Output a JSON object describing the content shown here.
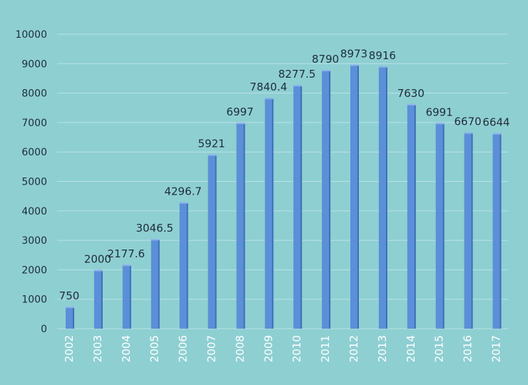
{
  "colors": {
    "background": "#8ecfd2",
    "bar_face": "#5b8fd8",
    "bar_side": "#3f6fb6",
    "bar_top": "#8fb5ec",
    "grid": "#b9e2e4",
    "text": "#1f2d3a",
    "tick_x": "#ffffff"
  },
  "chart_data": {
    "type": "bar",
    "categories": [
      "2002",
      "2003",
      "2004",
      "2005",
      "2006",
      "2007",
      "2008",
      "2009",
      "2010",
      "2011",
      "2012",
      "2013",
      "2014",
      "2015",
      "2016",
      "2017"
    ],
    "values": [
      750,
      2000,
      2177.6,
      3046.5,
      4296.7,
      5921,
      6997,
      7840.4,
      8277.5,
      8790,
      8973,
      8916,
      7630,
      6991,
      6670,
      6644
    ],
    "data_labels": [
      "750",
      "2000",
      "2177.6",
      "3046.5",
      "4296.7",
      "5921",
      "6997",
      "7840.4",
      "8277.5",
      "8790",
      "8973",
      "8916",
      "7630",
      "6991",
      "6670",
      "6644"
    ],
    "y_ticks": [
      "0",
      "1000",
      "2000",
      "3000",
      "4000",
      "5000",
      "6000",
      "7000",
      "8000",
      "9000",
      "10000"
    ],
    "ylim": [
      0,
      10000
    ],
    "grid": true,
    "legend": "none",
    "title": "",
    "xlabel": "",
    "ylabel": ""
  }
}
